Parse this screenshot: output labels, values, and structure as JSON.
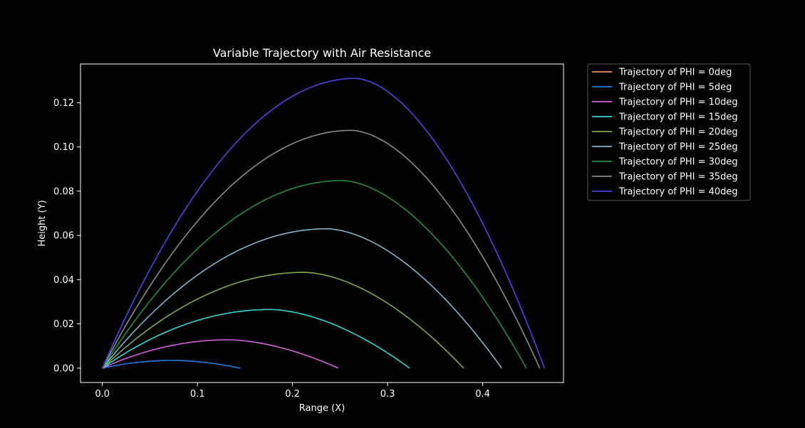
{
  "chart_data": {
    "type": "line",
    "title": "Variable Trajectory with Air Resistance",
    "xlabel": "Range (X)",
    "ylabel": "Height (Y)",
    "xlim": [
      -0.023,
      0.485
    ],
    "ylim": [
      -0.0065,
      0.1375
    ],
    "xticks": [
      0.0,
      0.1,
      0.2,
      0.3,
      0.4
    ],
    "xtick_labels": [
      "0.0",
      "0.1",
      "0.2",
      "0.3",
      "0.4"
    ],
    "yticks": [
      0.0,
      0.02,
      0.04,
      0.06,
      0.08,
      0.1,
      0.12
    ],
    "ytick_labels": [
      "0.00",
      "0.02",
      "0.04",
      "0.06",
      "0.08",
      "0.10",
      "0.12"
    ],
    "grid": false,
    "legend_position": "outside-top-right",
    "background": "#000000",
    "foreground": "#ffffff",
    "series": [
      {
        "name": "Trajectory of PHI = 0deg",
        "color": "#f0914a",
        "range": 0.0,
        "apex_x": 0.0,
        "apex_y": 0.0
      },
      {
        "name": "Trajectory of PHI = 5deg",
        "color": "#1f7ae0",
        "range": 0.145,
        "apex_x": 0.075,
        "apex_y": 0.0035
      },
      {
        "name": "Trajectory of PHI = 10deg",
        "color": "#d45fd6",
        "range": 0.248,
        "apex_x": 0.132,
        "apex_y": 0.0128
      },
      {
        "name": "Trajectory of PHI = 15deg",
        "color": "#2fd4d4",
        "range": 0.323,
        "apex_x": 0.176,
        "apex_y": 0.0265
      },
      {
        "name": "Trajectory of PHI = 20deg",
        "color": "#7fa84a",
        "range": 0.38,
        "apex_x": 0.212,
        "apex_y": 0.0433
      },
      {
        "name": "Trajectory of PHI = 25deg",
        "color": "#7fb3c9",
        "range": 0.42,
        "apex_x": 0.236,
        "apex_y": 0.063
      },
      {
        "name": "Trajectory of PHI = 30deg",
        "color": "#1f8f3f",
        "range": 0.446,
        "apex_x": 0.252,
        "apex_y": 0.0848
      },
      {
        "name": "Trajectory of PHI = 35deg",
        "color": "#8a8a8a",
        "range": 0.46,
        "apex_x": 0.262,
        "apex_y": 0.1075
      },
      {
        "name": "Trajectory of PHI = 40deg",
        "color": "#4b45e0",
        "range": 0.465,
        "apex_x": 0.266,
        "apex_y": 0.131
      }
    ]
  }
}
